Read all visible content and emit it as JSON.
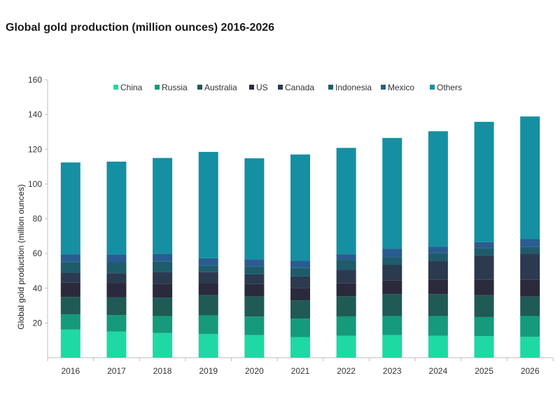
{
  "page": {
    "title": "Global gold production (million ounces) 2016-2026"
  },
  "chart_data": {
    "type": "bar",
    "stacked": true,
    "title": "Global gold production (million ounces) 2016-2026",
    "xlabel": "",
    "ylabel": "Global gold production (million ounces)",
    "ylim": [
      0,
      160
    ],
    "yticks": [
      20,
      40,
      60,
      80,
      100,
      120,
      140,
      160
    ],
    "grid": false,
    "legend_position": "top",
    "categories": [
      "2016",
      "2017",
      "2018",
      "2019",
      "2020",
      "2021",
      "2022",
      "2023",
      "2024",
      "2025",
      "2026"
    ],
    "series": [
      {
        "name": "China",
        "color": "#1ED9A3",
        "values": [
          16.2,
          15.0,
          14.2,
          13.6,
          13.0,
          11.9,
          12.6,
          13.0,
          12.6,
          12.4,
          12.0
        ]
      },
      {
        "name": "Russia",
        "color": "#159A7C",
        "values": [
          8.8,
          9.5,
          9.8,
          10.8,
          10.7,
          10.6,
          11.2,
          11.0,
          11.4,
          11.0,
          12.0
        ]
      },
      {
        "name": "Australia",
        "color": "#1F5A55",
        "values": [
          10.0,
          10.2,
          10.6,
          11.6,
          11.6,
          10.5,
          11.6,
          12.6,
          12.6,
          12.6,
          11.2
        ]
      },
      {
        "name": "US",
        "color": "#2A2A3C",
        "values": [
          8.2,
          8.4,
          8.0,
          6.9,
          7.1,
          7.2,
          7.4,
          7.8,
          8.2,
          8.8,
          9.6
        ]
      },
      {
        "name": "Canada",
        "color": "#2B3A4F",
        "values": [
          5.8,
          5.6,
          6.6,
          6.4,
          5.6,
          6.7,
          7.8,
          9.0,
          10.8,
          14.0,
          15.2
        ]
      },
      {
        "name": "Indonesia",
        "color": "#1E5C6B",
        "values": [
          6.1,
          6.3,
          6.1,
          3.8,
          4.7,
          4.8,
          5.6,
          4.6,
          4.6,
          4.4,
          3.8
        ]
      },
      {
        "name": "Mexico",
        "color": "#2A5C91",
        "values": [
          4.5,
          4.4,
          4.5,
          4.2,
          4.0,
          4.1,
          3.4,
          4.7,
          3.7,
          3.4,
          4.5
        ]
      },
      {
        "name": "Others",
        "color": "#1590A2",
        "values": [
          52.8,
          53.5,
          55.2,
          61.2,
          58.1,
          61.2,
          61.2,
          63.8,
          66.5,
          69.2,
          70.6
        ]
      }
    ]
  }
}
